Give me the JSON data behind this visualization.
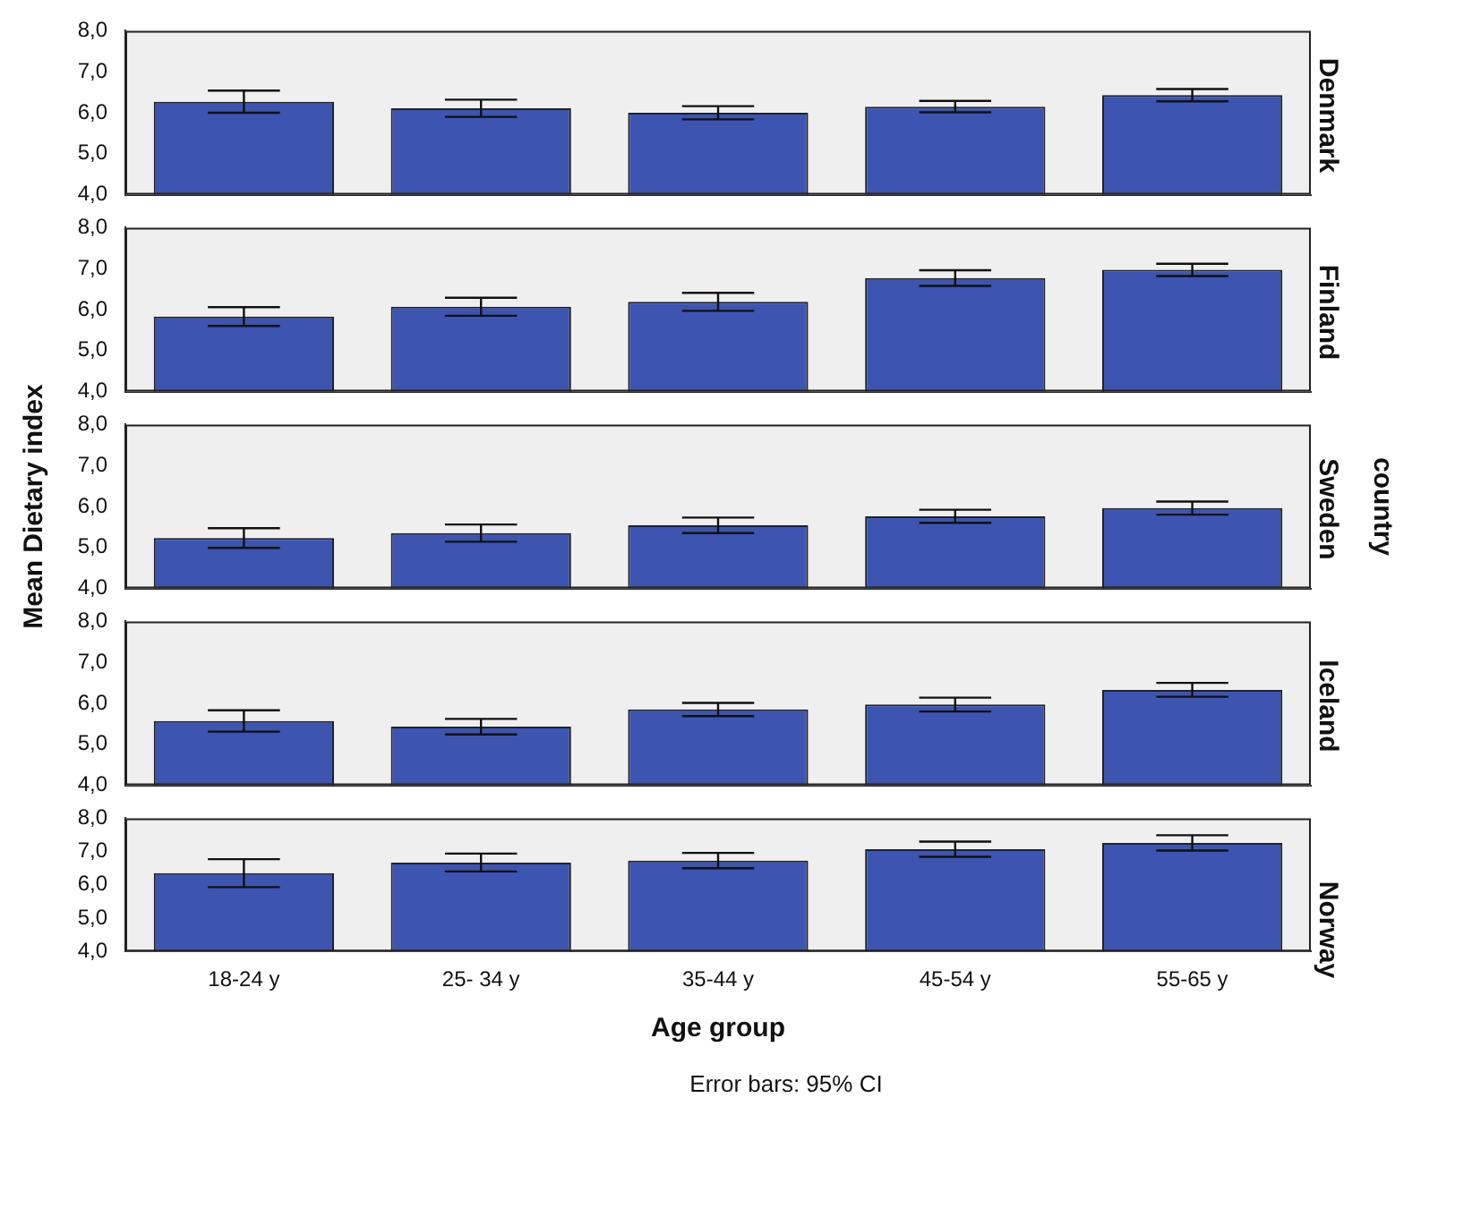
{
  "chart_data": [
    {
      "type": "bar",
      "title": "Denmark",
      "categories": [
        null,
        null,
        null,
        null,
        null
      ],
      "values": [
        6.27,
        6.11,
        6.0,
        6.15,
        6.43
      ],
      "errors": [
        0.27,
        0.21,
        0.16,
        0.14,
        0.15
      ],
      "color": "#3d55b0",
      "ylim": [
        4,
        8
      ],
      "yticks": [
        {
          "value": 4,
          "label": "4,0"
        },
        {
          "value": 5,
          "label": "5,0"
        },
        {
          "value": 6,
          "label": "6,0"
        },
        {
          "value": 7,
          "label": "7,0"
        },
        {
          "value": 8,
          "label": "8,0"
        }
      ],
      "grid": false,
      "tick_labels": "y"
    },
    {
      "type": "bar",
      "title": "Finland",
      "categories": [
        null,
        null,
        null,
        null,
        null
      ],
      "values": [
        5.83,
        6.07,
        6.19,
        6.77,
        6.97
      ],
      "errors": [
        0.23,
        0.22,
        0.22,
        0.19,
        0.15
      ],
      "color": "#3d55b0",
      "ylim": [
        4,
        8
      ],
      "yticks": [
        {
          "value": 4,
          "label": "4,0"
        },
        {
          "value": 5,
          "label": "5,0"
        },
        {
          "value": 6,
          "label": "6,0"
        },
        {
          "value": 7,
          "label": "7,0"
        },
        {
          "value": 8,
          "label": "8,0"
        }
      ],
      "grid": false,
      "tick_labels": "y"
    },
    {
      "type": "bar",
      "title": "Sweden",
      "ylabel": "Mean Dietary index",
      "legend_title": "country",
      "categories": [
        null,
        null,
        null,
        null,
        null
      ],
      "values": [
        5.23,
        5.35,
        5.54,
        5.76,
        5.96
      ],
      "errors": [
        0.24,
        0.21,
        0.19,
        0.16,
        0.16
      ],
      "color": "#3d55b0",
      "ylim": [
        4,
        8
      ],
      "yticks": [
        {
          "value": 4,
          "label": "4,0"
        },
        {
          "value": 5,
          "label": "5,0"
        },
        {
          "value": 6,
          "label": "6,0"
        },
        {
          "value": 7,
          "label": "7,0"
        },
        {
          "value": 8,
          "label": "8,0"
        }
      ],
      "grid": false,
      "tick_labels": "y"
    },
    {
      "type": "bar",
      "title": "Iceland",
      "categories": [
        null,
        null,
        null,
        null,
        null
      ],
      "values": [
        5.57,
        5.43,
        5.85,
        5.97,
        6.33
      ],
      "errors": [
        0.26,
        0.19,
        0.16,
        0.17,
        0.17
      ],
      "color": "#3d55b0",
      "ylim": [
        4,
        8
      ],
      "yticks": [
        {
          "value": 4,
          "label": "4,0"
        },
        {
          "value": 5,
          "label": "5,0"
        },
        {
          "value": 6,
          "label": "6,0"
        },
        {
          "value": 7,
          "label": "7,0"
        },
        {
          "value": 8,
          "label": "8,0"
        }
      ],
      "grid": false,
      "tick_labels": "y"
    },
    {
      "type": "bar",
      "title": "Norway",
      "xlabel": "Age group",
      "annotations": [
        "Error bars: 95% CI"
      ],
      "categories": [
        "18-24 y",
        "25- 34 y",
        "35-44 y",
        "45-54 y",
        "55-65 y"
      ],
      "values": [
        6.35,
        6.67,
        6.73,
        7.07,
        7.26
      ],
      "errors": [
        0.42,
        0.27,
        0.23,
        0.23,
        0.23
      ],
      "color": "#3d55b0",
      "ylim": [
        4,
        8
      ],
      "yticks": [
        {
          "value": 4,
          "label": "4,0"
        },
        {
          "value": 5,
          "label": "5,0"
        },
        {
          "value": 6,
          "label": "6,0"
        },
        {
          "value": 7,
          "label": "7,0"
        },
        {
          "value": 8,
          "label": "8,0"
        }
      ],
      "grid": false
    }
  ]
}
